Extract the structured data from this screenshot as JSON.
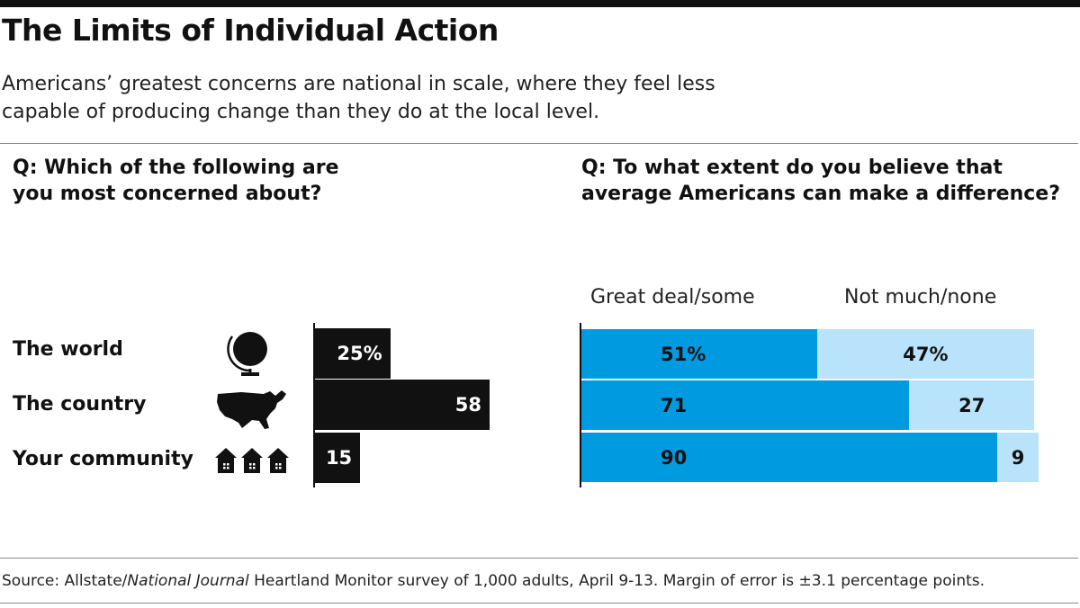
{
  "header": {
    "title": "The Limits of Individual Action",
    "subtitle": "Americans’ greatest concerns are national in scale, where they feel less capable of producing change than they do at the local level."
  },
  "colors": {
    "dark_blue": "#009ae0",
    "light_blue": "#b8e3fb",
    "black": "#111111"
  },
  "chart_data": [
    {
      "type": "bar",
      "title": "Q: Which of the following are you most concerned about?",
      "categories": [
        "The world",
        "The country",
        "Your community"
      ],
      "icons": [
        "globe-icon",
        "us-map-icon",
        "houses-icon"
      ],
      "values": [
        25,
        58,
        15
      ],
      "value_labels": [
        "25%",
        "58",
        "15"
      ],
      "ylim": [
        0,
        100
      ]
    },
    {
      "type": "bar",
      "stacked": true,
      "title": "Q: To what extent do you believe that average Americans can make a difference?",
      "categories": [
        "The world",
        "The country",
        "Your community"
      ],
      "series": [
        {
          "name": "Great deal/some",
          "values": [
            51,
            71,
            90
          ],
          "labels": [
            "51%",
            "71",
            "90"
          ]
        },
        {
          "name": "Not much/none",
          "values": [
            47,
            27,
            9
          ],
          "labels": [
            "47%",
            "27",
            "9"
          ]
        }
      ],
      "ylim": [
        0,
        100
      ]
    }
  ],
  "footer": {
    "source_prefix": "Source: Allstate/",
    "source_italic": "National Journal",
    "source_suffix": " Heartland Monitor survey of 1,000 adults, April 9-13. Margin of error is ±3.1 percentage points."
  }
}
